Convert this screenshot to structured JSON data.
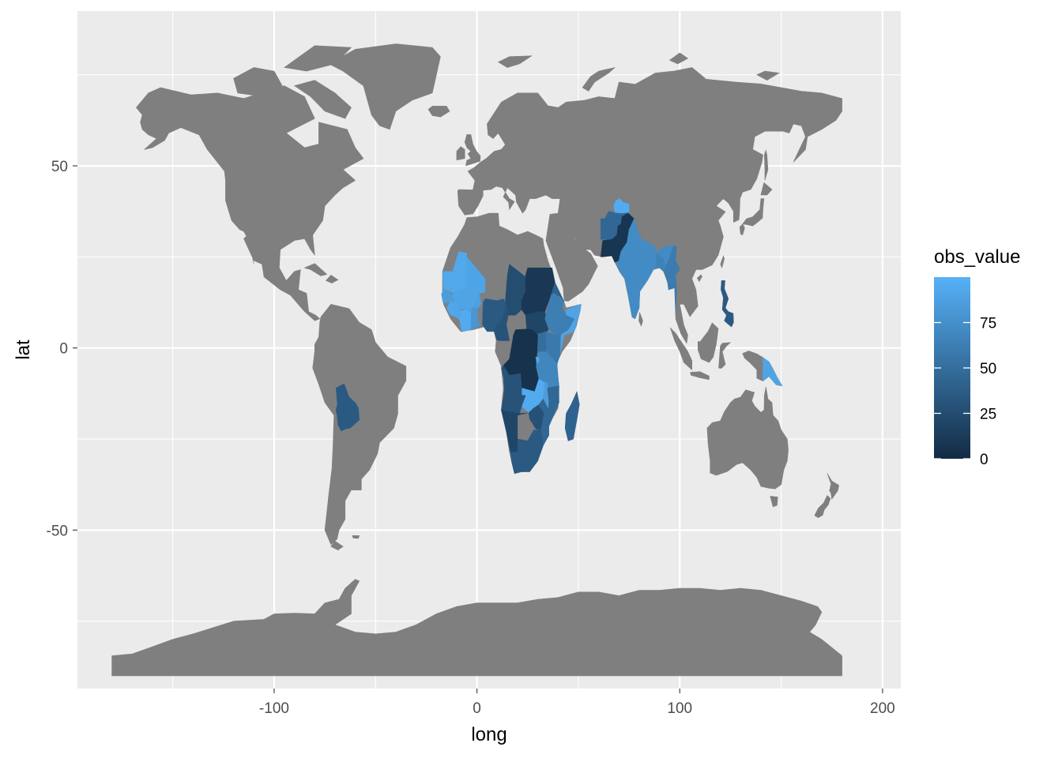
{
  "chart_data": {
    "type": "map",
    "xlabel": "long",
    "ylabel": "lat",
    "xlim": [
      -197,
      209
    ],
    "ylim": [
      -93.5,
      92.5
    ],
    "x_ticks": [
      -100,
      0,
      100,
      200
    ],
    "x_tick_labels": [
      "-100",
      "0",
      "100",
      "200"
    ],
    "y_ticks": [
      -50,
      0,
      50
    ],
    "y_tick_labels": [
      "-50",
      "0",
      "50"
    ],
    "x_minor": [
      -150,
      -50,
      50,
      150
    ],
    "y_minor": [
      -75,
      -25,
      25,
      75
    ],
    "grid": true,
    "panel_color": "#ebebeb",
    "land_color": "#7f7f7f",
    "legend": {
      "title": "obs_value",
      "position": "right",
      "breaks": [
        0,
        25,
        50,
        75
      ],
      "break_labels": [
        "0",
        "25",
        "50",
        "75"
      ],
      "range": [
        0,
        100
      ],
      "low_color": "#132b43",
      "high_color": "#56b1f7"
    },
    "regions": [
      {
        "name": "Mauritania",
        "value": 93
      },
      {
        "name": "Mali",
        "value": 90
      },
      {
        "name": "Senegal",
        "value": 85
      },
      {
        "name": "Guinea",
        "value": 92
      },
      {
        "name": "Burkina Faso",
        "value": 88
      },
      {
        "name": "Cote d'Ivoire",
        "value": 95
      },
      {
        "name": "Ghana",
        "value": 80
      },
      {
        "name": "Nigeria",
        "value": 35
      },
      {
        "name": "Chad",
        "value": 25
      },
      {
        "name": "Cameroon",
        "value": 30
      },
      {
        "name": "Sudan",
        "value": 10
      },
      {
        "name": "South Sudan",
        "value": 20
      },
      {
        "name": "Eritrea",
        "value": 40
      },
      {
        "name": "Somalia",
        "value": 90
      },
      {
        "name": "Ethiopia",
        "value": 62
      },
      {
        "name": "Kenya",
        "value": 58
      },
      {
        "name": "Uganda",
        "value": 50
      },
      {
        "name": "DR Congo",
        "value": 5
      },
      {
        "name": "Tanzania",
        "value": 68
      },
      {
        "name": "Burundi",
        "value": 90
      },
      {
        "name": "Zambia",
        "value": 95
      },
      {
        "name": "Angola",
        "value": 30
      },
      {
        "name": "Malawi",
        "value": 85
      },
      {
        "name": "Mozambique",
        "value": 45
      },
      {
        "name": "Zimbabwe",
        "value": 28
      },
      {
        "name": "Madagascar",
        "value": 42
      },
      {
        "name": "South Africa",
        "value": 35
      },
      {
        "name": "Namibia",
        "value": 20
      },
      {
        "name": "Afghanistan",
        "value": 45
      },
      {
        "name": "Pakistan",
        "value": 8
      },
      {
        "name": "Tajikistan",
        "value": 95
      },
      {
        "name": "India",
        "value": 72
      },
      {
        "name": "Bangladesh",
        "value": 65
      },
      {
        "name": "Myanmar",
        "value": 60
      },
      {
        "name": "Philippines",
        "value": 35
      },
      {
        "name": "Papua New Guinea",
        "value": 90
      },
      {
        "name": "Bolivia",
        "value": 35
      }
    ]
  }
}
